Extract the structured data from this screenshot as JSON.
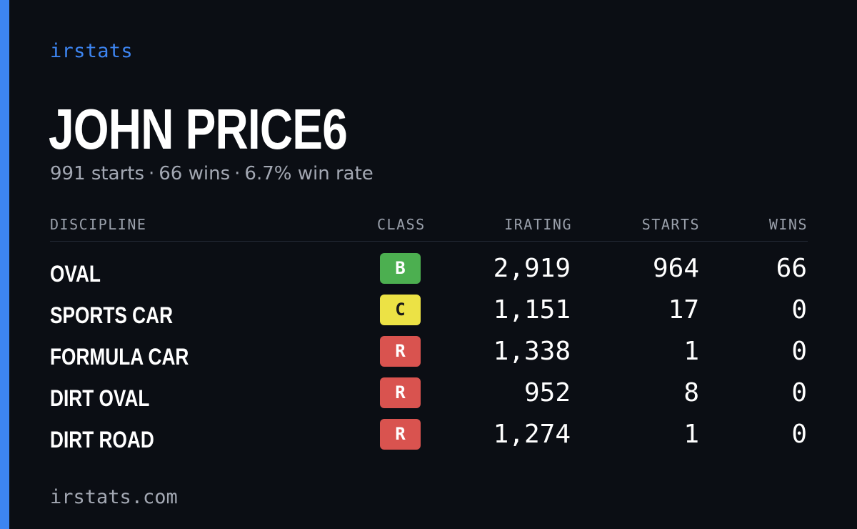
{
  "brand": "irstats",
  "driver": {
    "name": "JOHN PRICE6"
  },
  "summary": {
    "starts": "991 starts",
    "wins": "66 wins",
    "win_rate": "6.7% win rate",
    "separator": "·"
  },
  "table": {
    "headers": {
      "discipline": "DISCIPLINE",
      "class": "CLASS",
      "irating": "IRATING",
      "starts": "STARTS",
      "wins": "WINS"
    },
    "rows": [
      {
        "discipline": "OVAL",
        "class": "B",
        "class_bg": "#4caf50",
        "class_fg": "#ffffff",
        "irating": "2,919",
        "starts": "964",
        "wins": "66"
      },
      {
        "discipline": "SPORTS CAR",
        "class": "C",
        "class_bg": "#ece245",
        "class_fg": "#1a1a1a",
        "irating": "1,151",
        "starts": "17",
        "wins": "0"
      },
      {
        "discipline": "FORMULA CAR",
        "class": "R",
        "class_bg": "#d9534f",
        "class_fg": "#ffffff",
        "irating": "1,338",
        "starts": "1",
        "wins": "0"
      },
      {
        "discipline": "DIRT OVAL",
        "class": "R",
        "class_bg": "#d9534f",
        "class_fg": "#ffffff",
        "irating": "952",
        "starts": "8",
        "wins": "0"
      },
      {
        "discipline": "DIRT ROAD",
        "class": "R",
        "class_bg": "#d9534f",
        "class_fg": "#ffffff",
        "irating": "1,274",
        "starts": "1",
        "wins": "0"
      }
    ]
  },
  "footer": {
    "url": "irstats.com"
  },
  "colors": {
    "background": "#0b0e14",
    "accent": "#3d85f2",
    "muted_text": "#a3a8b3"
  }
}
